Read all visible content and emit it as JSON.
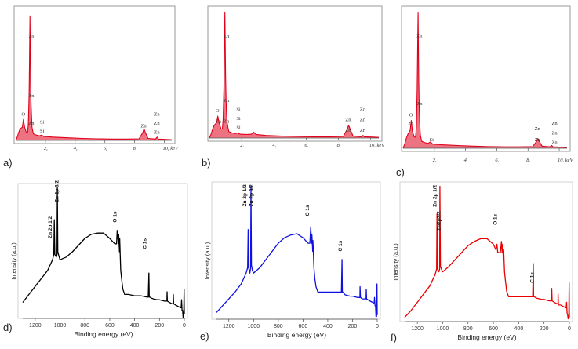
{
  "chart_data": [
    {
      "label": "a)",
      "type": "line",
      "color": "#e0001b",
      "xticks": [
        "2,",
        "4,",
        "6,",
        "8,",
        "10, keV"
      ],
      "xtick_values": [
        2,
        4,
        6,
        8,
        10
      ],
      "xlim": [
        0,
        10.5
      ],
      "ylim": [
        0,
        1
      ],
      "x": [
        0.0,
        0.1,
        0.2,
        0.3,
        0.45,
        0.52,
        0.6,
        0.72,
        0.8,
        0.85,
        0.9,
        0.93,
        0.96,
        1.0,
        1.03,
        1.06,
        1.1,
        1.15,
        1.2,
        1.4,
        1.6,
        1.74,
        1.9,
        2.5,
        3.5,
        4.5,
        5.5,
        6.5,
        7.5,
        8.3,
        8.55,
        8.63,
        8.72,
        8.9,
        9.4,
        9.52,
        9.6,
        10.0,
        10.5
      ],
      "y": [
        0.0,
        0.025,
        0.06,
        0.09,
        0.1,
        0.16,
        0.1,
        0.06,
        0.06,
        0.12,
        0.35,
        0.6,
        0.95,
        0.45,
        0.3,
        0.2,
        0.1,
        0.07,
        0.05,
        0.04,
        0.035,
        0.04,
        0.03,
        0.025,
        0.02,
        0.015,
        0.012,
        0.01,
        0.01,
        0.012,
        0.06,
        0.09,
        0.06,
        0.015,
        0.01,
        0.025,
        0.01,
        0.008,
        0.005
      ],
      "annotations": [
        {
          "text": "Zn",
          "x": 1.05,
          "y": 0.78
        },
        {
          "text": "Zn",
          "x": 1.05,
          "y": 0.33
        },
        {
          "text": "Zn",
          "x": 1.05,
          "y": 0.12
        },
        {
          "text": "O",
          "x": 0.52,
          "y": 0.19
        },
        {
          "text": "Si",
          "x": 1.78,
          "y": 0.13
        },
        {
          "text": "Si",
          "x": 1.78,
          "y": 0.06
        },
        {
          "text": "Zn",
          "x": 8.6,
          "y": 0.1
        },
        {
          "text": "Zn",
          "x": 9.5,
          "y": 0.19
        },
        {
          "text": "Zn",
          "x": 9.5,
          "y": 0.12
        },
        {
          "text": "Zn",
          "x": 9.5,
          "y": 0.05
        }
      ]
    },
    {
      "label": "b)",
      "type": "line",
      "color": "#e0001b",
      "xticks": [
        "2,",
        "4,",
        "6,",
        "8,",
        "10, keV"
      ],
      "xtick_values": [
        2,
        4,
        6,
        8,
        10
      ],
      "xlim": [
        0,
        10.5
      ],
      "ylim": [
        0,
        1
      ],
      "x": [
        0.0,
        0.1,
        0.2,
        0.3,
        0.45,
        0.52,
        0.6,
        0.72,
        0.8,
        0.85,
        0.9,
        0.93,
        0.96,
        1.0,
        1.03,
        1.06,
        1.1,
        1.15,
        1.2,
        1.4,
        1.6,
        1.74,
        1.9,
        2.3,
        2.6,
        2.75,
        2.9,
        3.5,
        4.5,
        5.5,
        6.5,
        7.5,
        8.3,
        8.55,
        8.63,
        8.72,
        8.9,
        9.4,
        9.52,
        9.6,
        10.0,
        10.5
      ],
      "y": [
        0.0,
        0.03,
        0.07,
        0.1,
        0.12,
        0.17,
        0.12,
        0.07,
        0.07,
        0.15,
        0.4,
        0.7,
        0.98,
        0.5,
        0.3,
        0.2,
        0.12,
        0.08,
        0.05,
        0.04,
        0.035,
        0.04,
        0.03,
        0.028,
        0.03,
        0.045,
        0.028,
        0.02,
        0.015,
        0.012,
        0.01,
        0.01,
        0.012,
        0.07,
        0.1,
        0.07,
        0.015,
        0.01,
        0.02,
        0.01,
        0.008,
        0.005
      ],
      "annotations": [
        {
          "text": "Zn",
          "x": 1.05,
          "y": 0.78
        },
        {
          "text": "Zn",
          "x": 1.05,
          "y": 0.28
        },
        {
          "text": "Zn",
          "x": 1.05,
          "y": 0.12
        },
        {
          "text": "O",
          "x": 0.5,
          "y": 0.2
        },
        {
          "text": "Zn",
          "x": 0.55,
          "y": 0.12
        },
        {
          "text": "Si",
          "x": 1.8,
          "y": 0.21
        },
        {
          "text": "Si",
          "x": 1.8,
          "y": 0.14
        },
        {
          "text": "Si",
          "x": 1.8,
          "y": 0.07
        },
        {
          "text": "Zn",
          "x": 8.6,
          "y": 0.13
        },
        {
          "text": "Zn",
          "x": 8.6,
          "y": 0.05
        },
        {
          "text": "Zn",
          "x": 9.5,
          "y": 0.21
        },
        {
          "text": "Zn",
          "x": 9.5,
          "y": 0.13
        },
        {
          "text": "Zn",
          "x": 9.5,
          "y": 0.05
        }
      ]
    },
    {
      "label": "c)",
      "type": "line",
      "color": "#e0001b",
      "xticks": [
        "2,",
        "4,",
        "6,",
        "8,",
        "10, keV"
      ],
      "xtick_values": [
        2,
        4,
        6,
        8,
        10
      ],
      "xlim": [
        0,
        10.5
      ],
      "ylim": [
        0,
        1
      ],
      "x": [
        0.0,
        0.1,
        0.2,
        0.3,
        0.45,
        0.52,
        0.6,
        0.72,
        0.8,
        0.85,
        0.9,
        0.93,
        0.96,
        1.0,
        1.03,
        1.06,
        1.1,
        1.15,
        1.2,
        1.4,
        1.6,
        1.74,
        1.9,
        2.5,
        3.5,
        4.5,
        5.5,
        6.5,
        7.5,
        8.3,
        8.55,
        8.63,
        8.72,
        8.9,
        9.4,
        9.52,
        9.6,
        10.0,
        10.5
      ],
      "y": [
        0.0,
        0.03,
        0.07,
        0.1,
        0.13,
        0.2,
        0.12,
        0.08,
        0.08,
        0.16,
        0.42,
        0.72,
        0.98,
        0.5,
        0.3,
        0.2,
        0.1,
        0.07,
        0.05,
        0.04,
        0.035,
        0.045,
        0.03,
        0.025,
        0.02,
        0.015,
        0.012,
        0.01,
        0.01,
        0.012,
        0.05,
        0.07,
        0.05,
        0.015,
        0.01,
        0.02,
        0.01,
        0.008,
        0.005
      ],
      "annotations": [
        {
          "text": "Zn",
          "x": 1.05,
          "y": 0.8
        },
        {
          "text": "Zn",
          "x": 1.05,
          "y": 0.31
        },
        {
          "text": "Zn",
          "x": 0.5,
          "y": 0.17
        },
        {
          "text": "O",
          "x": 0.5,
          "y": 0.23
        },
        {
          "text": "Si",
          "x": 1.82,
          "y": 0.05
        },
        {
          "text": "Zn",
          "x": 8.6,
          "y": 0.13
        },
        {
          "text": "Zn",
          "x": 8.6,
          "y": 0.05
        },
        {
          "text": "Zn",
          "x": 9.7,
          "y": 0.17
        },
        {
          "text": "Zn",
          "x": 9.7,
          "y": 0.1
        },
        {
          "text": "Zn",
          "x": 9.7,
          "y": 0.03
        }
      ]
    },
    {
      "label": "d)",
      "type": "line",
      "color": "#000000",
      "xlabel": "Binding energy (eV)",
      "ylabel": "Intensity (a.u.)",
      "xticks": [
        "1200",
        "1000",
        "800",
        "600",
        "400",
        "200",
        "0"
      ],
      "xtick_values": [
        1200,
        1000,
        800,
        600,
        400,
        200,
        0
      ],
      "xlim": [
        1300,
        0
      ],
      "ylim": [
        0,
        1
      ],
      "x_reversed": true,
      "x": [
        1300,
        1250,
        1200,
        1150,
        1100,
        1080,
        1060,
        1050,
        1046,
        1042,
        1030,
        1024,
        1022,
        1018,
        1010,
        1000,
        950,
        900,
        850,
        800,
        750,
        700,
        650,
        600,
        560,
        545,
        540,
        531,
        528,
        522,
        520,
        512,
        505,
        500,
        495,
        480,
        450,
        400,
        350,
        300,
        290,
        285,
        282,
        278,
        260,
        220,
        200,
        160,
        140,
        139,
        136,
        120,
        100,
        90,
        89,
        86,
        70,
        50,
        30,
        25,
        22,
        18,
        14,
        10,
        5,
        2,
        0
      ],
      "y": [
        0.12,
        0.18,
        0.24,
        0.3,
        0.36,
        0.4,
        0.44,
        0.48,
        0.74,
        0.48,
        0.46,
        0.48,
        0.98,
        0.5,
        0.47,
        0.44,
        0.46,
        0.5,
        0.55,
        0.6,
        0.63,
        0.64,
        0.64,
        0.6,
        0.56,
        0.56,
        0.66,
        0.56,
        0.63,
        0.5,
        0.6,
        0.36,
        0.3,
        0.26,
        0.22,
        0.18,
        0.18,
        0.17,
        0.17,
        0.16,
        0.16,
        0.34,
        0.16,
        0.16,
        0.15,
        0.14,
        0.14,
        0.13,
        0.13,
        0.2,
        0.13,
        0.12,
        0.11,
        0.11,
        0.18,
        0.11,
        0.1,
        0.09,
        0.08,
        0.08,
        0.14,
        0.06,
        0.06,
        0.01,
        0.01,
        0.22,
        0.03
      ],
      "annotations": [
        {
          "text": "Zn 2p 3/2",
          "x": 1012,
          "y": 0.87
        },
        {
          "text": "Zn 2p 1/2",
          "x": 1065,
          "y": 0.6
        },
        {
          "text": "O 1s",
          "x": 545,
          "y": 0.72
        },
        {
          "text": "C 1s",
          "x": 305,
          "y": 0.52
        }
      ]
    },
    {
      "label": "e)",
      "type": "line",
      "color": "#1010e0",
      "xlabel": "Binding energy (eV)",
      "ylabel": "Intensity (a.u.)",
      "xticks": [
        "1200",
        "1000",
        "800",
        "600",
        "400",
        "200",
        "0"
      ],
      "xtick_values": [
        1200,
        1000,
        800,
        600,
        400,
        200,
        0
      ],
      "xlim": [
        1300,
        0
      ],
      "ylim": [
        0,
        1
      ],
      "x_reversed": true,
      "x": [
        1300,
        1250,
        1200,
        1150,
        1100,
        1080,
        1060,
        1048,
        1044,
        1040,
        1030,
        1024,
        1021,
        1017,
        1010,
        1000,
        950,
        900,
        850,
        800,
        750,
        700,
        650,
        600,
        560,
        545,
        538,
        531,
        528,
        522,
        520,
        512,
        505,
        500,
        495,
        480,
        450,
        400,
        350,
        300,
        290,
        285,
        282,
        278,
        260,
        220,
        200,
        160,
        140,
        139,
        136,
        120,
        100,
        90,
        89,
        86,
        70,
        50,
        30,
        25,
        22,
        18,
        14,
        10,
        5,
        2,
        0
      ],
      "y": [
        0.05,
        0.1,
        0.15,
        0.2,
        0.26,
        0.3,
        0.34,
        0.38,
        0.66,
        0.38,
        0.34,
        0.38,
        0.98,
        0.4,
        0.36,
        0.34,
        0.38,
        0.44,
        0.5,
        0.56,
        0.6,
        0.62,
        0.63,
        0.6,
        0.56,
        0.56,
        0.68,
        0.56,
        0.62,
        0.5,
        0.58,
        0.38,
        0.3,
        0.27,
        0.24,
        0.2,
        0.2,
        0.2,
        0.2,
        0.2,
        0.2,
        0.44,
        0.2,
        0.2,
        0.18,
        0.17,
        0.17,
        0.16,
        0.16,
        0.24,
        0.16,
        0.15,
        0.15,
        0.15,
        0.22,
        0.15,
        0.14,
        0.13,
        0.12,
        0.12,
        0.16,
        0.1,
        0.1,
        0.02,
        0.02,
        0.26,
        0.03
      ],
      "annotations": [
        {
          "text": "Zn 2p 3/2",
          "x": 1005,
          "y": 0.83
        },
        {
          "text": "Zn 2p 1/2",
          "x": 1058,
          "y": 0.83
        },
        {
          "text": "O 1s",
          "x": 552,
          "y": 0.76
        },
        {
          "text": "C 1s",
          "x": 285,
          "y": 0.5
        }
      ]
    },
    {
      "label": "f)",
      "type": "line",
      "color": "#ea0000",
      "xlabel": "Binding energy (eV)",
      "ylabel": "Intensity (a.u.)",
      "xticks": [
        "1200",
        "1000",
        "800",
        "600",
        "400",
        "200",
        "0"
      ],
      "xtick_values": [
        1200,
        1000,
        800,
        600,
        400,
        200,
        0
      ],
      "xlim": [
        1300,
        0
      ],
      "ylim": [
        0,
        1
      ],
      "x_reversed": true,
      "x": [
        1300,
        1250,
        1200,
        1150,
        1100,
        1080,
        1060,
        1048,
        1045,
        1042,
        1030,
        1024,
        1022,
        1018,
        1010,
        1000,
        950,
        900,
        850,
        800,
        750,
        700,
        650,
        600,
        580,
        572,
        565,
        545,
        536,
        531,
        526,
        522,
        519,
        512,
        505,
        500,
        495,
        480,
        450,
        400,
        350,
        300,
        290,
        285,
        282,
        278,
        260,
        220,
        200,
        160,
        140,
        139,
        136,
        120,
        100,
        90,
        89,
        86,
        70,
        50,
        30,
        25,
        22,
        18,
        14,
        10,
        5,
        2,
        0
      ],
      "y": [
        0.03,
        0.08,
        0.14,
        0.2,
        0.26,
        0.3,
        0.34,
        0.38,
        0.78,
        0.38,
        0.36,
        0.38,
        0.98,
        0.4,
        0.38,
        0.36,
        0.4,
        0.45,
        0.5,
        0.55,
        0.58,
        0.6,
        0.6,
        0.56,
        0.52,
        0.56,
        0.5,
        0.5,
        0.58,
        0.5,
        0.56,
        0.45,
        0.52,
        0.36,
        0.3,
        0.26,
        0.22,
        0.18,
        0.18,
        0.18,
        0.18,
        0.18,
        0.18,
        0.42,
        0.18,
        0.18,
        0.17,
        0.16,
        0.16,
        0.15,
        0.15,
        0.24,
        0.15,
        0.14,
        0.13,
        0.13,
        0.2,
        0.12,
        0.12,
        0.11,
        0.1,
        0.1,
        0.14,
        0.06,
        0.05,
        0.02,
        0.02,
        0.28,
        0.03
      ],
      "annotations": [
        {
          "text": "Zn 2p 1/2",
          "x": 1048,
          "y": 0.83
        },
        {
          "text": "Zn2p3/2",
          "x": 1018,
          "y": 0.66
        },
        {
          "text": "O 1s",
          "x": 572,
          "y": 0.7
        },
        {
          "text": "C 1s",
          "x": 282,
          "y": 0.28
        }
      ]
    }
  ]
}
